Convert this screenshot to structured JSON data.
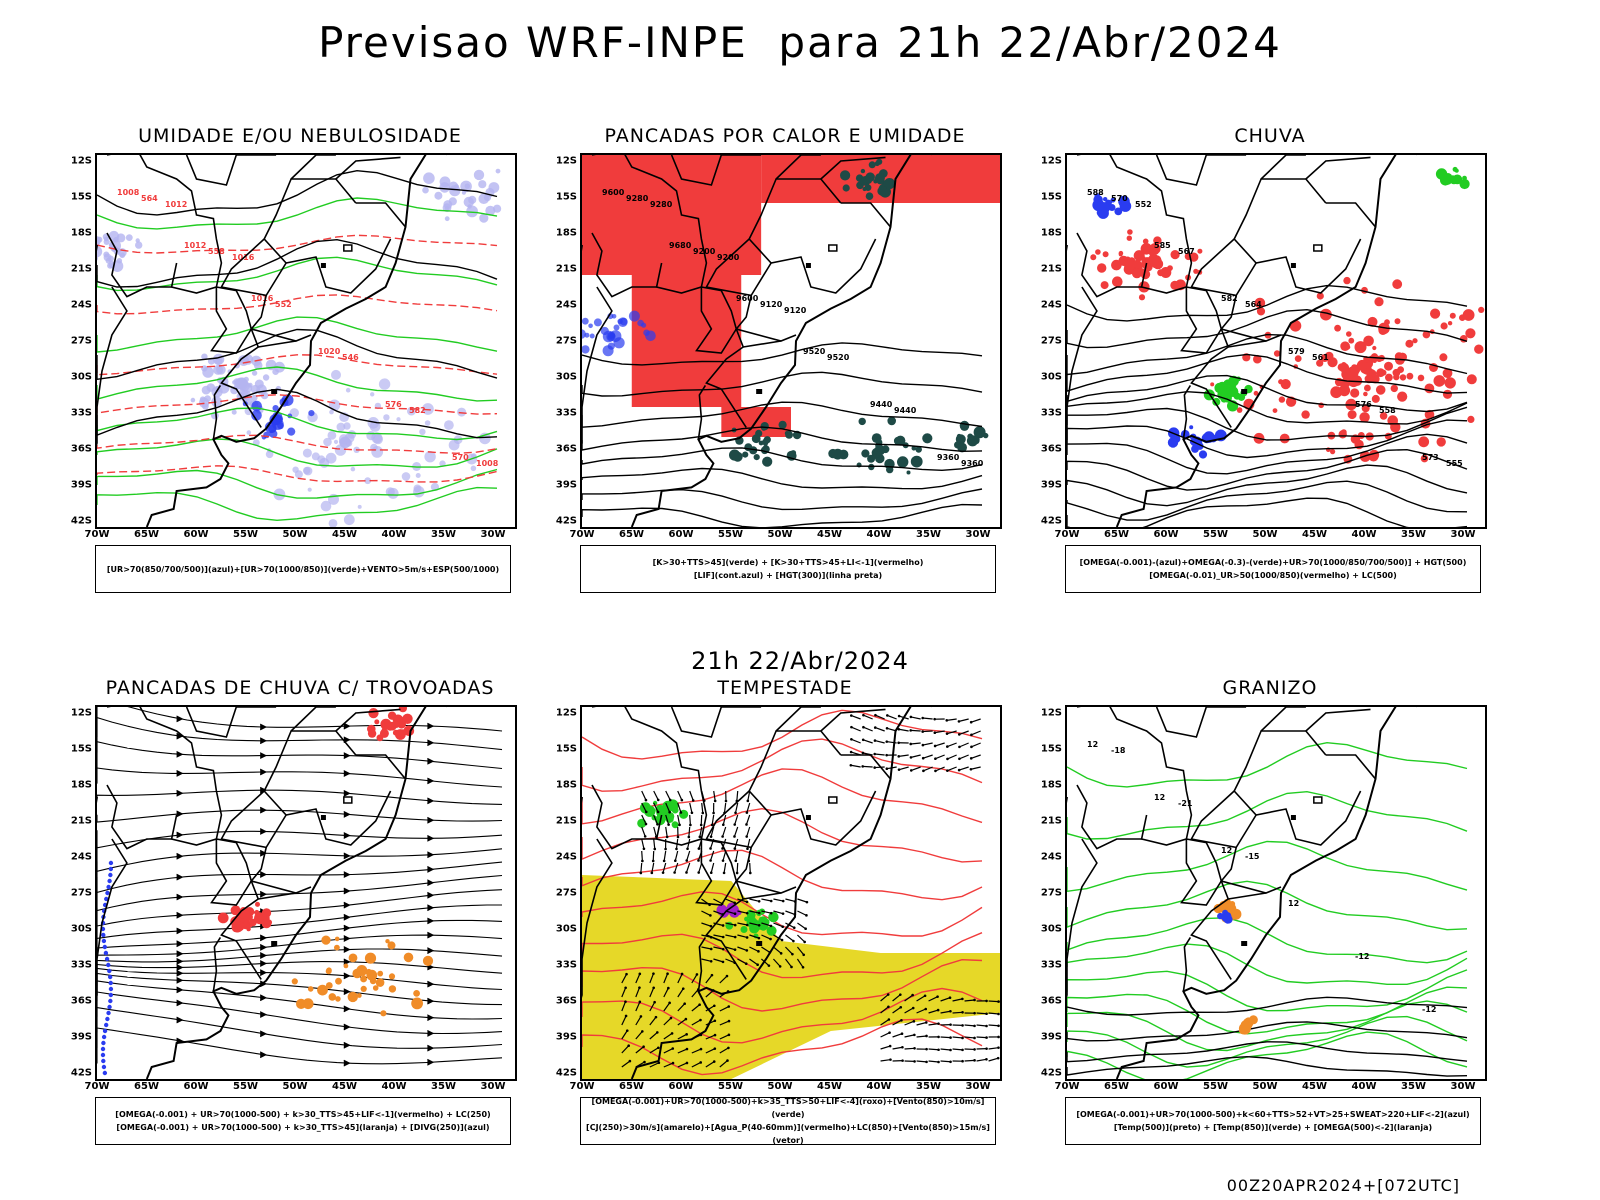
{
  "title": "Previsao WRF-INPE  para 21h 22/Abr/2024",
  "date_label": "21h 22/Abr/2024",
  "footer": "00Z20APR2024+[072UTC]",
  "lat_labels": [
    "12S",
    "15S",
    "18S",
    "21S",
    "24S",
    "27S",
    "30S",
    "33S",
    "36S",
    "39S",
    "42S"
  ],
  "lon_labels": [
    "70W",
    "65W",
    "60W",
    "55W",
    "50W",
    "45W",
    "40W",
    "35W",
    "30W"
  ],
  "colors": {
    "red": "#f03c3c",
    "green": "#22cc22",
    "blue": "#2a3cf0",
    "lavender": "#b4b4f0",
    "darkteal": "#1e4a46",
    "yellow": "#e6d828",
    "orange": "#f08c28",
    "purple": "#a020c8",
    "black": "#000000"
  },
  "panels": [
    {
      "title": "UMIDADE E/OU NEBULOSIDADE",
      "legend": [
        "[UR>70(850/700/500)](azul)+[UR>70(1000/850)](verde)+VENTO>5m/s+ESP(500/1000)"
      ],
      "contour_labels": [
        "1008",
        "1012",
        "1016",
        "1020",
        "576",
        "570",
        "564",
        "558",
        "552",
        "546",
        "582",
        "1008",
        "1012",
        "1016"
      ]
    },
    {
      "title": "PANCADAS POR CALOR E UMIDADE",
      "legend": [
        "[K>30+TTS>45](verde) + [K>30+TTS>45+LI<-1](vermelho)",
        "[LIF](cont.azul) + [HGT(300)](linha preta)"
      ],
      "contour_labels": [
        "9600",
        "9680",
        "9600",
        "9520",
        "9440",
        "9360",
        "9280",
        "9200",
        "9120",
        "9520",
        "9440",
        "9360",
        "9280",
        "9200",
        "9120"
      ]
    },
    {
      "title": "CHUVA",
      "legend": [
        "[OMEGA(-0.001)-(azul)+OMEGA(-0.3)-(verde)+UR>70(1000/850/700/500)] + HGT(500)",
        "[OMEGA(-0.01)_UR>50(1000/850)(vermelho) + LC(500)"
      ],
      "contour_labels": [
        "588",
        "585",
        "582",
        "579",
        "576",
        "573",
        "570",
        "567",
        "564",
        "561",
        "558",
        "555",
        "552"
      ]
    },
    {
      "title": "PANCADAS DE CHUVA C/ TROVOADAS",
      "legend": [
        "[OMEGA(-0.001) + UR>70(1000-500) + k>30_TTS>45+LIF<-1](vermelho) + LC(250)",
        "[OMEGA(-0.001) + UR>70(1000-500) + k>30_TTS>45](laranja) + [DIVG(250)](azul)"
      ],
      "contour_labels": []
    },
    {
      "title": "TEMPESTADE",
      "legend": [
        "[OMEGA(-0.001)+UR>70(1000-500)+k>35_TTS>50+LIF<-4](roxo)+[Vento(850)>10m/s](verde)",
        "[CJ(250)>30m/s](amarelo)+[Agua_P(40-60mm)](vermelho)+LC(850)+[Vento(850)>15m/s](vetor)"
      ],
      "contour_labels": []
    },
    {
      "title": "GRANIZO",
      "legend": [
        "[OMEGA(-0.001)+UR>70(1000-500)+k<60+TTS>52+VT>25+SWEAT>220+LIF<-2](azul)",
        "[Temp(500)](preto) + [Temp(850)](verde) + [OMEGA(500)<-2](laranja)"
      ],
      "contour_labels": [
        "12",
        "12",
        "12",
        "12",
        "-12",
        "-12",
        "-18",
        "-21",
        "-15"
      ]
    }
  ]
}
